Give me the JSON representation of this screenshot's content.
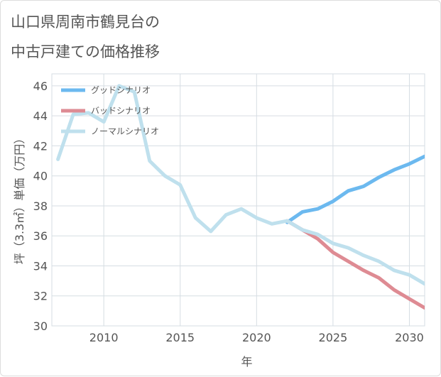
{
  "title": {
    "line1": "山口県周南市鶴見台の",
    "line2": "中古戸建ての価格推移"
  },
  "chart_data": {
    "type": "line",
    "xlabel": "年",
    "ylabel": "坪（3.3㎡）単価（万円）",
    "xlim": [
      2006.6,
      2031
    ],
    "ylim": [
      30,
      46.8
    ],
    "xticks": [
      2010,
      2015,
      2020,
      2025,
      2030
    ],
    "yticks": [
      30,
      32,
      34,
      36,
      38,
      40,
      42,
      44,
      46
    ],
    "grid": true,
    "legend_position": "top-left",
    "series": [
      {
        "name": "グッドシナリオ",
        "color": "#6cb9ef",
        "x": [
          2022,
          2023,
          2024,
          2025,
          2026,
          2027,
          2028,
          2029,
          2030,
          2031
        ],
        "y": [
          36.9,
          37.6,
          37.8,
          38.3,
          39.0,
          39.3,
          39.9,
          40.4,
          40.8,
          41.3
        ]
      },
      {
        "name": "バッドシナリオ",
        "color": "#de8b93",
        "x": [
          2022,
          2023,
          2024,
          2025,
          2026,
          2027,
          2028,
          2029,
          2030,
          2031
        ],
        "y": [
          37.0,
          36.4,
          35.8,
          34.9,
          34.3,
          33.7,
          33.2,
          32.4,
          31.8,
          31.2
        ]
      },
      {
        "name": "ノーマルシナリオ",
        "color": "#bfe0ed",
        "x": [
          2007,
          2008,
          2009,
          2010,
          2011,
          2012,
          2013,
          2014,
          2015,
          2016,
          2017,
          2018,
          2019,
          2020,
          2021,
          2022,
          2023,
          2024,
          2025,
          2026,
          2027,
          2028,
          2029,
          2030,
          2031
        ],
        "y": [
          41.1,
          44.1,
          44.2,
          43.6,
          46.0,
          45.6,
          41.0,
          40.0,
          39.4,
          37.2,
          36.3,
          37.4,
          37.8,
          37.2,
          36.8,
          37.0,
          36.4,
          36.1,
          35.5,
          35.2,
          34.7,
          34.3,
          33.7,
          33.4,
          32.8
        ]
      }
    ]
  }
}
